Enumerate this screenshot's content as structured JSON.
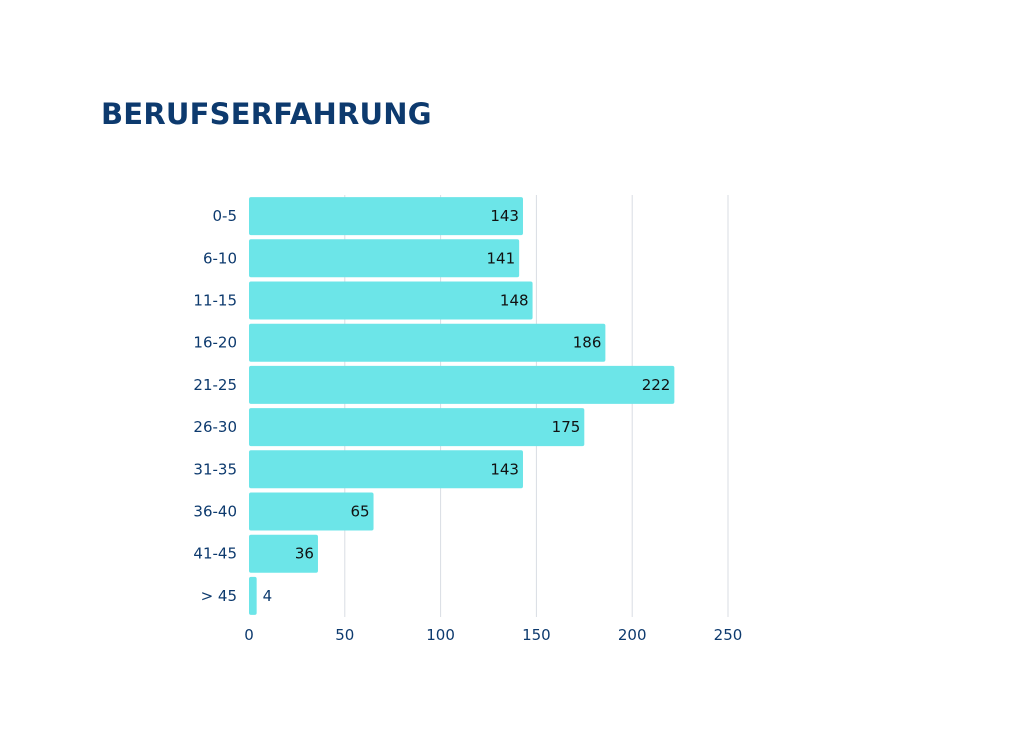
{
  "chart_data": {
    "type": "bar",
    "orientation": "horizontal",
    "title": "BERUFSERFAHRUNG",
    "categories": [
      "0-5",
      "6-10",
      "11-15",
      "16-20",
      "21-25",
      "26-30",
      "31-35",
      "36-40",
      "41-45",
      "> 45"
    ],
    "values": [
      143,
      141,
      148,
      186,
      222,
      175,
      143,
      65,
      36,
      4
    ],
    "xlim": [
      0,
      250
    ],
    "xticks": [
      0,
      50,
      100,
      150,
      200,
      250
    ],
    "grid": true,
    "bar_color": "#6ce5e8",
    "xlabel": "",
    "ylabel": ""
  }
}
